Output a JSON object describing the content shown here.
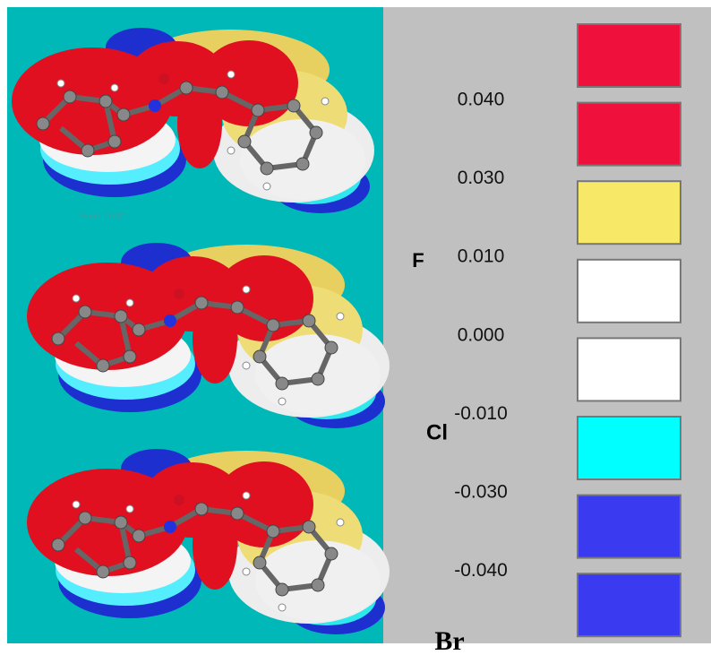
{
  "panel_note": "Eon0 : 0.002",
  "molecule_labels": [
    "F",
    "Cl",
    "Br"
  ],
  "legend": {
    "labels": [
      "0.040",
      "0.030",
      "0.010",
      "0.000",
      "-0.010",
      "-0.030",
      "-0.040"
    ],
    "colors": [
      "#f0103c",
      "#f0103c",
      "#f8e868",
      "#ffffff",
      "#ffffff",
      "#00ffff",
      "#3a3af0",
      "#3a3af0"
    ]
  }
}
